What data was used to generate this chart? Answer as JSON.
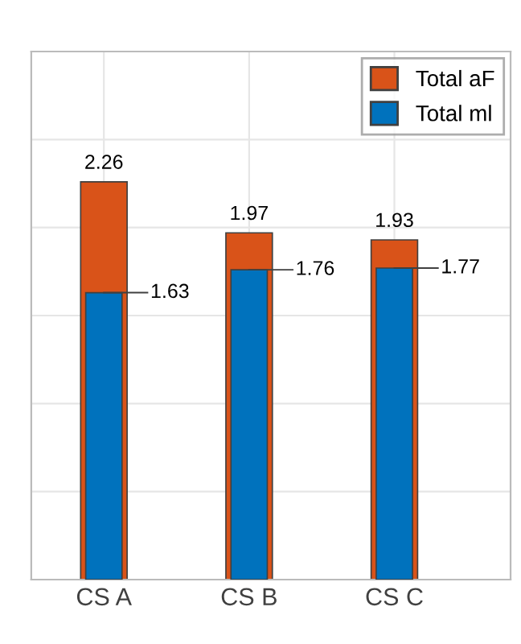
{
  "chart_data": {
    "type": "bar",
    "categories": [
      "CS A",
      "CS B",
      "CS C"
    ],
    "series": [
      {
        "name": "Total aF",
        "color": "#d95319",
        "values": [
          2.26,
          1.97,
          1.93
        ]
      },
      {
        "name": "Total ml",
        "color": "#0072bd",
        "values": [
          1.63,
          1.76,
          1.77
        ]
      }
    ],
    "ylim": [
      0,
      3
    ],
    "yticks": [
      {
        "value": 0,
        "label": null
      },
      {
        "value": 0.5,
        "label": null
      },
      {
        "value": 1,
        "label": null
      },
      {
        "value": 1.5,
        "label": null
      },
      {
        "value": 2,
        "label": null
      },
      {
        "value": 2.5,
        "label": null
      },
      {
        "value": 3,
        "label": null
      }
    ],
    "tick_labels": "x",
    "grid": true,
    "legend": "top right",
    "data_labels": true
  }
}
